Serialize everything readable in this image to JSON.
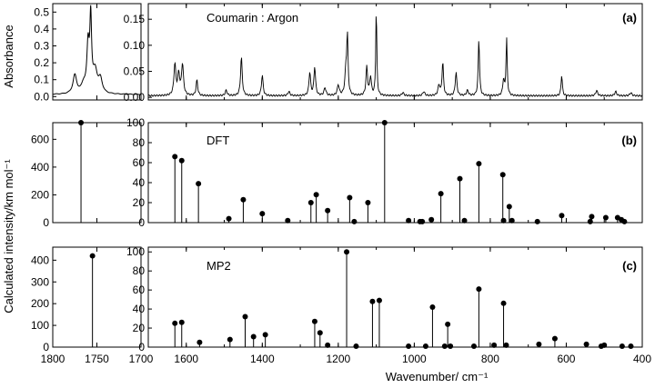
{
  "figure": {
    "ylabel_top": "Absorbance",
    "ylabel_bottom": "Calculated intensity/km mol⁻¹",
    "xlabel": "Wavenumber/ cm⁻¹"
  },
  "chart_data": [
    {
      "type": "line",
      "panel": "(a)",
      "label": "Coumarin : Argon",
      "ylabel": "Absorbance",
      "left": {
        "xlim": [
          1800,
          1700
        ],
        "xticks": [
          1800,
          1750,
          1700
        ],
        "ylim": [
          -0.02,
          0.55
        ],
        "yticks": [
          0.0,
          0.1,
          0.2,
          0.3,
          0.4,
          0.5
        ],
        "baseline": 0.012,
        "peaks": [
          {
            "x": 1775,
            "h": 0.11,
            "w": 2.5
          },
          {
            "x": 1760,
            "h": 0.27,
            "w": 1.6
          },
          {
            "x": 1757,
            "h": 0.42,
            "w": 1.2
          },
          {
            "x": 1752,
            "h": 0.13,
            "w": 3.0
          },
          {
            "x": 1746,
            "h": 0.08,
            "w": 2.5
          },
          {
            "x": 1765,
            "h": 0.05,
            "w": 3.0
          }
        ]
      },
      "right": {
        "xlim": [
          1700,
          400
        ],
        "ylim": [
          -0.005,
          0.18
        ],
        "yticks": [
          0.0,
          0.05,
          0.1,
          0.15
        ],
        "baseline": 0.003,
        "peaks": [
          {
            "x": 1630,
            "h": 0.06,
            "w": 3
          },
          {
            "x": 1620,
            "h": 0.04,
            "w": 3
          },
          {
            "x": 1610,
            "h": 0.06,
            "w": 3
          },
          {
            "x": 1572,
            "h": 0.03,
            "w": 2.5
          },
          {
            "x": 1495,
            "h": 0.01,
            "w": 3
          },
          {
            "x": 1455,
            "h": 0.075,
            "w": 2.5
          },
          {
            "x": 1400,
            "h": 0.04,
            "w": 2.5
          },
          {
            "x": 1330,
            "h": 0.008,
            "w": 3
          },
          {
            "x": 1275,
            "h": 0.045,
            "w": 2.5
          },
          {
            "x": 1262,
            "h": 0.055,
            "w": 2.5
          },
          {
            "x": 1235,
            "h": 0.015,
            "w": 3
          },
          {
            "x": 1200,
            "h": 0.02,
            "w": 3
          },
          {
            "x": 1180,
            "h": 0.045,
            "w": 3
          },
          {
            "x": 1176,
            "h": 0.11,
            "w": 2
          },
          {
            "x": 1125,
            "h": 0.055,
            "w": 2.5
          },
          {
            "x": 1115,
            "h": 0.035,
            "w": 2.5
          },
          {
            "x": 1100,
            "h": 0.17,
            "w": 1.6
          },
          {
            "x": 1030,
            "h": 0.006,
            "w": 3
          },
          {
            "x": 975,
            "h": 0.008,
            "w": 3
          },
          {
            "x": 935,
            "h": 0.02,
            "w": 3
          },
          {
            "x": 925,
            "h": 0.065,
            "w": 2.2
          },
          {
            "x": 890,
            "h": 0.045,
            "w": 2.5
          },
          {
            "x": 860,
            "h": 0.01,
            "w": 3
          },
          {
            "x": 830,
            "h": 0.11,
            "w": 2
          },
          {
            "x": 765,
            "h": 0.03,
            "w": 2.5
          },
          {
            "x": 757,
            "h": 0.11,
            "w": 1.8
          },
          {
            "x": 612,
            "h": 0.04,
            "w": 2
          },
          {
            "x": 520,
            "h": 0.01,
            "w": 3
          },
          {
            "x": 470,
            "h": 0.008,
            "w": 3
          },
          {
            "x": 430,
            "h": 0.006,
            "w": 3
          }
        ]
      }
    },
    {
      "type": "stem",
      "panel": "(b)",
      "label": "DFT",
      "left": {
        "xlim": [
          1800,
          1700
        ],
        "ylim": [
          0,
          720
        ],
        "yticks": [
          0,
          200,
          400,
          600
        ],
        "points": [
          {
            "x": 1768,
            "y": 720
          }
        ]
      },
      "right": {
        "xlim": [
          1700,
          400
        ],
        "ylim": [
          0,
          100
        ],
        "yticks": [
          0,
          20,
          40,
          60,
          80,
          100
        ],
        "points": [
          {
            "x": 1630,
            "y": 66
          },
          {
            "x": 1612,
            "y": 62
          },
          {
            "x": 1568,
            "y": 39
          },
          {
            "x": 1488,
            "y": 4
          },
          {
            "x": 1450,
            "y": 23
          },
          {
            "x": 1400,
            "y": 9
          },
          {
            "x": 1333,
            "y": 2
          },
          {
            "x": 1272,
            "y": 20
          },
          {
            "x": 1258,
            "y": 28
          },
          {
            "x": 1228,
            "y": 12
          },
          {
            "x": 1170,
            "y": 25
          },
          {
            "x": 1158,
            "y": 1
          },
          {
            "x": 1122,
            "y": 20
          },
          {
            "x": 1078,
            "y": 100
          },
          {
            "x": 1015,
            "y": 2
          },
          {
            "x": 985,
            "y": 1
          },
          {
            "x": 979,
            "y": 1
          },
          {
            "x": 955,
            "y": 3
          },
          {
            "x": 930,
            "y": 29
          },
          {
            "x": 880,
            "y": 44
          },
          {
            "x": 868,
            "y": 2
          },
          {
            "x": 830,
            "y": 59
          },
          {
            "x": 767,
            "y": 48
          },
          {
            "x": 765,
            "y": 2
          },
          {
            "x": 750,
            "y": 16
          },
          {
            "x": 743,
            "y": 2
          },
          {
            "x": 676,
            "y": 1
          },
          {
            "x": 612,
            "y": 7
          },
          {
            "x": 537,
            "y": 1
          },
          {
            "x": 533,
            "y": 6
          },
          {
            "x": 496,
            "y": 5
          },
          {
            "x": 465,
            "y": 5
          },
          {
            "x": 455,
            "y": 3
          },
          {
            "x": 447,
            "y": 1
          }
        ]
      }
    },
    {
      "type": "stem",
      "panel": "(c)",
      "label": "MP2",
      "left": {
        "xlim": [
          1800,
          1700
        ],
        "ylim": [
          0,
          460
        ],
        "yticks": [
          0,
          100,
          200,
          300,
          400
        ],
        "points": [
          {
            "x": 1755,
            "y": 420
          }
        ]
      },
      "right": {
        "xlim": [
          1700,
          400
        ],
        "ylim": [
          0,
          105
        ],
        "yticks": [
          0,
          20,
          40,
          60,
          80,
          100
        ],
        "points": [
          {
            "x": 1630,
            "y": 25
          },
          {
            "x": 1612,
            "y": 26
          },
          {
            "x": 1565,
            "y": 5
          },
          {
            "x": 1485,
            "y": 8
          },
          {
            "x": 1445,
            "y": 32
          },
          {
            "x": 1423,
            "y": 11
          },
          {
            "x": 1392,
            "y": 13
          },
          {
            "x": 1262,
            "y": 27
          },
          {
            "x": 1248,
            "y": 15
          },
          {
            "x": 1228,
            "y": 2
          },
          {
            "x": 1178,
            "y": 100
          },
          {
            "x": 1153,
            "y": 1
          },
          {
            "x": 1110,
            "y": 48
          },
          {
            "x": 1092,
            "y": 49
          },
          {
            "x": 1015,
            "y": 1
          },
          {
            "x": 970,
            "y": 1
          },
          {
            "x": 952,
            "y": 42
          },
          {
            "x": 920,
            "y": 1
          },
          {
            "x": 912,
            "y": 24
          },
          {
            "x": 905,
            "y": 1
          },
          {
            "x": 843,
            "y": 1
          },
          {
            "x": 830,
            "y": 61
          },
          {
            "x": 790,
            "y": 2
          },
          {
            "x": 765,
            "y": 46
          },
          {
            "x": 758,
            "y": 2
          },
          {
            "x": 672,
            "y": 3
          },
          {
            "x": 630,
            "y": 9
          },
          {
            "x": 547,
            "y": 3
          },
          {
            "x": 508,
            "y": 1
          },
          {
            "x": 500,
            "y": 2
          },
          {
            "x": 453,
            "y": 1
          },
          {
            "x": 430,
            "y": 1
          }
        ]
      }
    }
  ]
}
